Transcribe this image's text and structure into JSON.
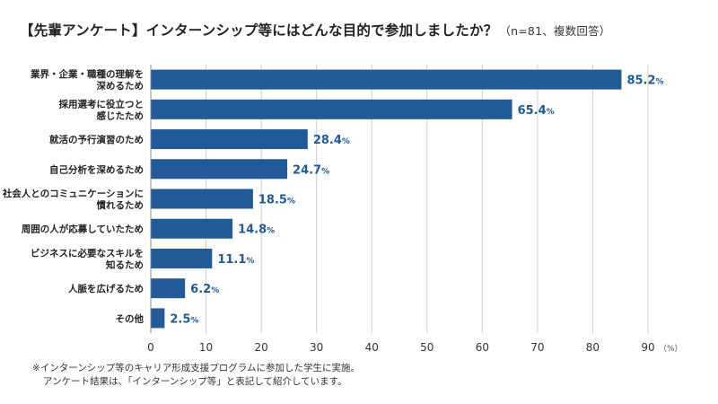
{
  "chart_data": {
    "type": "bar",
    "orientation": "horizontal",
    "title": "【先輩アンケート】インターンシップ等にはどんな目的で参加しましたか？",
    "subtitle": "（n=81、複数回答）",
    "categories": [
      [
        "業界・企業・職種の理解を",
        "深めるため"
      ],
      [
        "採用選考に役立つと",
        "感じたため"
      ],
      [
        "就活の予行演習のため"
      ],
      [
        "自己分析を深めるため"
      ],
      [
        "社会人とのコミュニケーションに",
        "慣れるため"
      ],
      [
        "周囲の人が応募していたため"
      ],
      [
        "ビジネスに必要なスキルを",
        "知るため"
      ],
      [
        "人脈を広げるため"
      ],
      [
        "その他"
      ]
    ],
    "values": [
      85.2,
      65.4,
      28.4,
      24.7,
      18.5,
      14.8,
      11.1,
      6.2,
      2.5
    ],
    "value_suffix": "%",
    "xlim": [
      0,
      90
    ],
    "xticks": [
      0,
      10,
      20,
      30,
      40,
      50,
      60,
      70,
      80,
      90
    ],
    "x_unit": "（%）",
    "grid": "vertical",
    "bar_color": "#215a96",
    "label_color": "#215a96"
  },
  "footnote": {
    "line1": "※インターンシップ等のキャリア形成支援プログラムに参加した学生に実施。",
    "line2": "アンケート結果は、「インターンシップ等」と表記して紹介しています。"
  }
}
